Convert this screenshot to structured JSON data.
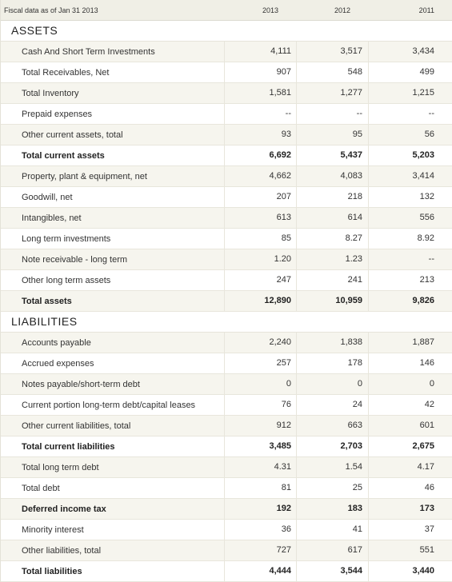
{
  "header": {
    "label": "Fiscal data as of Jan 31 2013",
    "years": [
      "2013",
      "2012",
      "2011"
    ]
  },
  "assets": {
    "title": "ASSETS",
    "rows": [
      {
        "label": "Cash And Short Term Investments",
        "values": [
          "4,111",
          "3,517",
          "3,434"
        ],
        "bold": false
      },
      {
        "label": "Total Receivables, Net",
        "values": [
          "907",
          "548",
          "499"
        ],
        "bold": false
      },
      {
        "label": "Total Inventory",
        "values": [
          "1,581",
          "1,277",
          "1,215"
        ],
        "bold": false
      },
      {
        "label": "Prepaid expenses",
        "values": [
          "--",
          "--",
          "--"
        ],
        "bold": false
      },
      {
        "label": "Other current assets, total",
        "values": [
          "93",
          "95",
          "56"
        ],
        "bold": false
      },
      {
        "label": "Total current assets",
        "values": [
          "6,692",
          "5,437",
          "5,203"
        ],
        "bold": true
      },
      {
        "label": "Property, plant & equipment, net",
        "values": [
          "4,662",
          "4,083",
          "3,414"
        ],
        "bold": false
      },
      {
        "label": "Goodwill, net",
        "values": [
          "207",
          "218",
          "132"
        ],
        "bold": false
      },
      {
        "label": "Intangibles, net",
        "values": [
          "613",
          "614",
          "556"
        ],
        "bold": false
      },
      {
        "label": "Long term investments",
        "values": [
          "85",
          "8.27",
          "8.92"
        ],
        "bold": false
      },
      {
        "label": "Note receivable - long term",
        "values": [
          "1.20",
          "1.23",
          "--"
        ],
        "bold": false
      },
      {
        "label": "Other long term assets",
        "values": [
          "247",
          "241",
          "213"
        ],
        "bold": false
      },
      {
        "label": "Total assets",
        "values": [
          "12,890",
          "10,959",
          "9,826"
        ],
        "bold": true
      }
    ]
  },
  "liabilities": {
    "title": "LIABILITIES",
    "rows": [
      {
        "label": "Accounts payable",
        "values": [
          "2,240",
          "1,838",
          "1,887"
        ],
        "bold": false
      },
      {
        "label": "Accrued expenses",
        "values": [
          "257",
          "178",
          "146"
        ],
        "bold": false
      },
      {
        "label": "Notes payable/short-term debt",
        "values": [
          "0",
          "0",
          "0"
        ],
        "bold": false
      },
      {
        "label": "Current portion long-term debt/capital leases",
        "values": [
          "76",
          "24",
          "42"
        ],
        "bold": false
      },
      {
        "label": "Other current liabilities, total",
        "values": [
          "912",
          "663",
          "601"
        ],
        "bold": false
      },
      {
        "label": "Total current liabilities",
        "values": [
          "3,485",
          "2,703",
          "2,675"
        ],
        "bold": true
      },
      {
        "label": "Total long term debt",
        "values": [
          "4.31",
          "1.54",
          "4.17"
        ],
        "bold": false
      },
      {
        "label": "Total debt",
        "values": [
          "81",
          "25",
          "46"
        ],
        "bold": false
      },
      {
        "label": "Deferred income tax",
        "values": [
          "192",
          "183",
          "173"
        ],
        "bold": true
      },
      {
        "label": "Minority interest",
        "values": [
          "36",
          "41",
          "37"
        ],
        "bold": false
      },
      {
        "label": "Other liabilities, total",
        "values": [
          "727",
          "617",
          "551"
        ],
        "bold": false
      },
      {
        "label": "Total liabilities",
        "values": [
          "4,444",
          "3,544",
          "3,440"
        ],
        "bold": true
      }
    ]
  }
}
